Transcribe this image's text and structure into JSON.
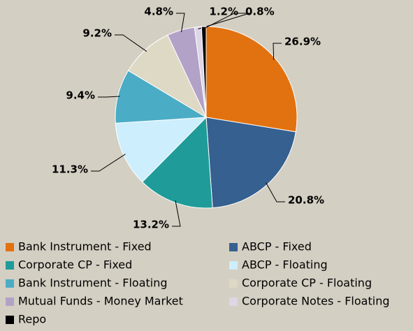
{
  "chart_data": {
    "type": "pie",
    "categories": [
      "Bank Instrument - Fixed",
      "ABCP - Fixed",
      "Corporate CP - Fixed",
      "ABCP - Floating",
      "Bank Instrument - Floating",
      "Corporate CP - Floating",
      "Mutual Funds - Money Market",
      "Corporate Notes - Floating",
      "Repo"
    ],
    "values": [
      26.9,
      20.8,
      13.2,
      11.3,
      9.4,
      9.2,
      4.8,
      1.2,
      0.8
    ],
    "value_labels": [
      "26.9%",
      "20.8%",
      "13.2%",
      "11.3%",
      "9.4%",
      "9.2%",
      "4.8%",
      "1.2%",
      "0.8%"
    ],
    "colors": [
      "#e2710f",
      "#35608f",
      "#1f9c99",
      "#cdeefc",
      "#4bacc6",
      "#ddd9c4",
      "#b3a2c7",
      "#dcd6e6",
      "#000000"
    ],
    "legend": "bottom"
  }
}
